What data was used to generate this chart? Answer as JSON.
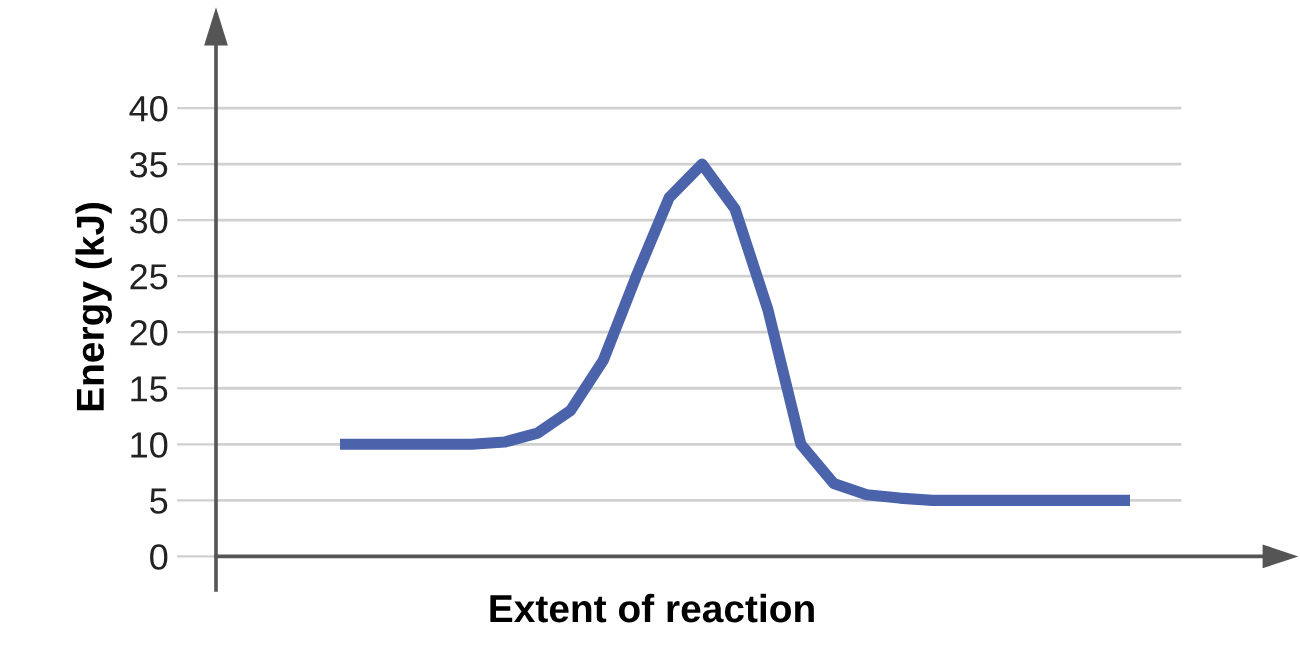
{
  "chart_data": {
    "type": "line",
    "xlabel": "Extent of reaction",
    "ylabel": "Energy (kJ)",
    "categories": [
      null,
      null,
      null,
      null,
      null,
      null,
      null,
      null,
      null,
      null,
      null,
      null,
      null,
      null,
      null,
      null,
      null,
      null,
      null,
      null,
      null,
      null,
      null,
      null,
      null
    ],
    "series": [
      {
        "color": "#4a63ab",
        "values": [
          10,
          10,
          10,
          10,
          10,
          10.2,
          11,
          13,
          17.5,
          25,
          32,
          35,
          31,
          22,
          10,
          6.5,
          5.5,
          5.2,
          5,
          5,
          5,
          5,
          5,
          5,
          5
        ]
      }
    ],
    "ylim": [
      -3,
      47.5
    ],
    "yticks": [
      0,
      5,
      10,
      15,
      20,
      25,
      30,
      35,
      40
    ],
    "tick_labels": "y",
    "grid": "y",
    "marker": "none",
    "line_style": "solid"
  }
}
